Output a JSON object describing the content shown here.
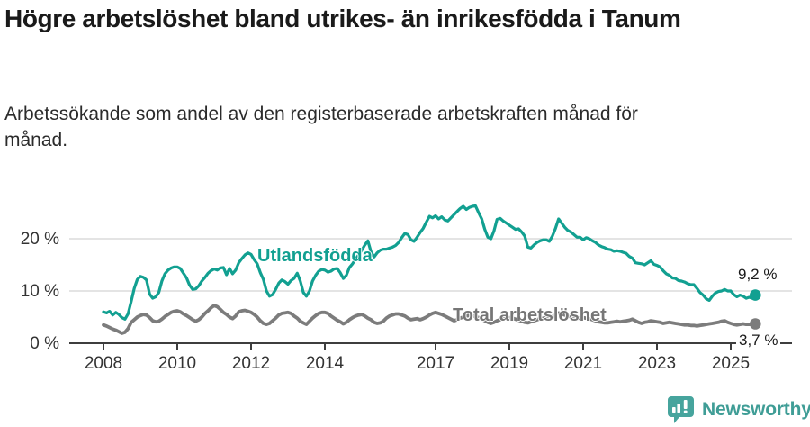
{
  "title": "Högre arbetslöshet bland utrikes- än inrikesfödda i Tanum",
  "subtitle": "Arbetssökande som andel av den registerbaserade arbetskraften månad för månad.",
  "logo": {
    "text": "Newsworthy",
    "color": "#3f9d96",
    "icon": "speech-bubble-bar-chart-icon"
  },
  "colors": {
    "utlandsfodda": "#12a091",
    "total": "#7c7c7c",
    "axis": "#3d3d3d",
    "grid": "#dcdcdc",
    "tick_text": "#333333"
  },
  "chart_data": {
    "type": "line",
    "title": "Högre arbetslöshet bland utrikes- än inrikesfödda i Tanum",
    "subtitle": "Arbetssökande som andel av den registerbaserade arbetskraften månad för månad.",
    "unit": "%",
    "frequency": "monthly",
    "start": "2008-01",
    "end": "2025-09",
    "ylim": [
      0,
      28.5
    ],
    "grid": "horizontal",
    "legend_position": "inline-labels",
    "x_ticks": [
      2008,
      2010,
      2012,
      2014,
      2017,
      2019,
      2021,
      2023,
      2025
    ],
    "y_ticks": [
      {
        "value": 0,
        "label": "0 %"
      },
      {
        "value": 10,
        "label": "10 %"
      },
      {
        "value": 20,
        "label": "20 %"
      }
    ],
    "series": [
      {
        "name": "Utlandsfödda",
        "color": "#12a091",
        "end_label": "9,2 %",
        "end_value": 9.2,
        "values": [
          6.0,
          5.8,
          6.1,
          5.4,
          5.9,
          5.5,
          4.9,
          4.6,
          5.6,
          8.0,
          10.5,
          12.2,
          12.8,
          12.6,
          12.1,
          9.4,
          8.6,
          8.9,
          9.7,
          11.9,
          13.3,
          14.0,
          14.4,
          14.6,
          14.6,
          14.3,
          13.4,
          12.5,
          11.1,
          10.3,
          10.4,
          11.0,
          11.9,
          12.6,
          13.4,
          13.9,
          14.2,
          14.0,
          14.4,
          14.5,
          13.1,
          14.3,
          13.3,
          14.0,
          15.4,
          16.2,
          16.9,
          17.3,
          17.0,
          16.0,
          15.2,
          13.5,
          12.2,
          10.0,
          9.0,
          9.3,
          10.3,
          11.5,
          12.1,
          11.8,
          11.3,
          12.0,
          12.4,
          13.4,
          11.9,
          9.7,
          9.0,
          10.0,
          11.9,
          13.0,
          13.8,
          14.1,
          14.0,
          13.6,
          13.8,
          14.2,
          14.3,
          13.5,
          12.4,
          13.0,
          14.5,
          15.2,
          16.1,
          16.9,
          17.8,
          18.8,
          19.6,
          17.5,
          16.5,
          17.3,
          17.8,
          18.0,
          18.0,
          18.2,
          18.4,
          18.7,
          19.3,
          20.2,
          21.0,
          20.8,
          19.8,
          19.5,
          20.3,
          21.2,
          22.0,
          23.2,
          24.3,
          24.0,
          24.4,
          23.8,
          24.2,
          23.6,
          23.4,
          24.0,
          24.6,
          25.2,
          25.8,
          26.2,
          25.6,
          26.0,
          26.2,
          26.3,
          25.0,
          23.8,
          21.8,
          20.3,
          20.0,
          21.5,
          23.7,
          23.9,
          23.4,
          23.0,
          22.6,
          22.2,
          21.8,
          21.9,
          21.3,
          20.5,
          18.4,
          18.2,
          18.8,
          19.3,
          19.6,
          19.8,
          19.8,
          19.5,
          20.5,
          22.0,
          23.8,
          23.0,
          22.2,
          21.6,
          21.3,
          20.8,
          20.3,
          20.3,
          19.8,
          20.2,
          20.0,
          19.6,
          19.3,
          18.8,
          18.5,
          18.3,
          18.0,
          17.9,
          17.6,
          17.7,
          17.6,
          17.4,
          17.2,
          16.6,
          16.3,
          15.4,
          15.3,
          15.2,
          15.0,
          15.4,
          15.8,
          15.1,
          14.9,
          14.6,
          13.9,
          13.3,
          13.0,
          12.5,
          12.4,
          12.0,
          11.9,
          11.7,
          11.4,
          11.2,
          11.2,
          10.5,
          9.7,
          9.2,
          8.5,
          8.2,
          9.0,
          9.6,
          9.9,
          10.0,
          10.3,
          10.0,
          10.0,
          9.3,
          8.9,
          9.2,
          9.0,
          8.6,
          8.8,
          8.6,
          9.2
        ]
      },
      {
        "name": "Total arbetslöshet",
        "color": "#7c7c7c",
        "end_label": "3,7 %",
        "end_value": 3.7,
        "values": [
          3.5,
          3.3,
          3.0,
          2.7,
          2.5,
          2.2,
          1.9,
          2.1,
          2.8,
          4.0,
          4.5,
          5.0,
          5.3,
          5.5,
          5.4,
          4.9,
          4.3,
          4.1,
          4.2,
          4.6,
          5.1,
          5.5,
          5.9,
          6.1,
          6.2,
          6.0,
          5.6,
          5.3,
          4.9,
          4.5,
          4.2,
          4.5,
          5.0,
          5.7,
          6.2,
          6.8,
          7.2,
          7.0,
          6.5,
          5.9,
          5.5,
          5.0,
          4.7,
          5.2,
          6.0,
          6.2,
          6.3,
          6.1,
          5.9,
          5.5,
          5.0,
          4.3,
          3.8,
          3.6,
          3.8,
          4.3,
          4.8,
          5.4,
          5.7,
          5.8,
          5.9,
          5.7,
          5.2,
          4.8,
          4.2,
          3.9,
          3.6,
          4.2,
          4.8,
          5.3,
          5.7,
          5.9,
          5.9,
          5.7,
          5.2,
          4.8,
          4.4,
          4.1,
          3.7,
          4.0,
          4.5,
          4.9,
          5.2,
          5.4,
          5.5,
          5.2,
          4.8,
          4.5,
          4.0,
          3.8,
          3.9,
          4.2,
          4.8,
          5.2,
          5.4,
          5.6,
          5.6,
          5.4,
          5.2,
          4.8,
          4.5,
          4.6,
          4.7,
          4.5,
          4.7,
          5.0,
          5.4,
          5.7,
          5.9,
          5.7,
          5.5,
          5.2,
          4.9,
          4.6,
          4.3,
          4.5,
          4.8,
          5.0,
          5.2,
          5.3,
          5.3,
          5.1,
          4.9,
          4.6,
          4.3,
          4.0,
          3.8,
          4.0,
          4.3,
          4.5,
          4.7,
          4.8,
          4.9,
          4.8,
          4.6,
          4.4,
          4.2,
          4.0,
          3.9,
          4.1,
          4.3,
          4.5,
          4.7,
          4.8,
          4.9,
          4.8,
          5.0,
          5.5,
          5.8,
          5.6,
          5.4,
          5.2,
          5.0,
          4.9,
          4.8,
          4.8,
          4.9,
          4.8,
          4.7,
          4.5,
          4.3,
          4.1,
          4.0,
          3.9,
          3.9,
          4.0,
          4.1,
          4.2,
          4.1,
          4.2,
          4.3,
          4.4,
          4.6,
          4.3,
          4.0,
          3.8,
          4.0,
          4.1,
          4.3,
          4.2,
          4.1,
          4.0,
          3.8,
          3.9,
          4.0,
          3.9,
          3.8,
          3.7,
          3.6,
          3.5,
          3.5,
          3.4,
          3.4,
          3.3,
          3.4,
          3.5,
          3.6,
          3.7,
          3.8,
          3.9,
          4.0,
          4.2,
          4.3,
          4.0,
          3.8,
          3.6,
          3.5,
          3.6,
          3.7,
          3.6,
          3.6,
          3.6,
          3.7
        ]
      }
    ]
  }
}
